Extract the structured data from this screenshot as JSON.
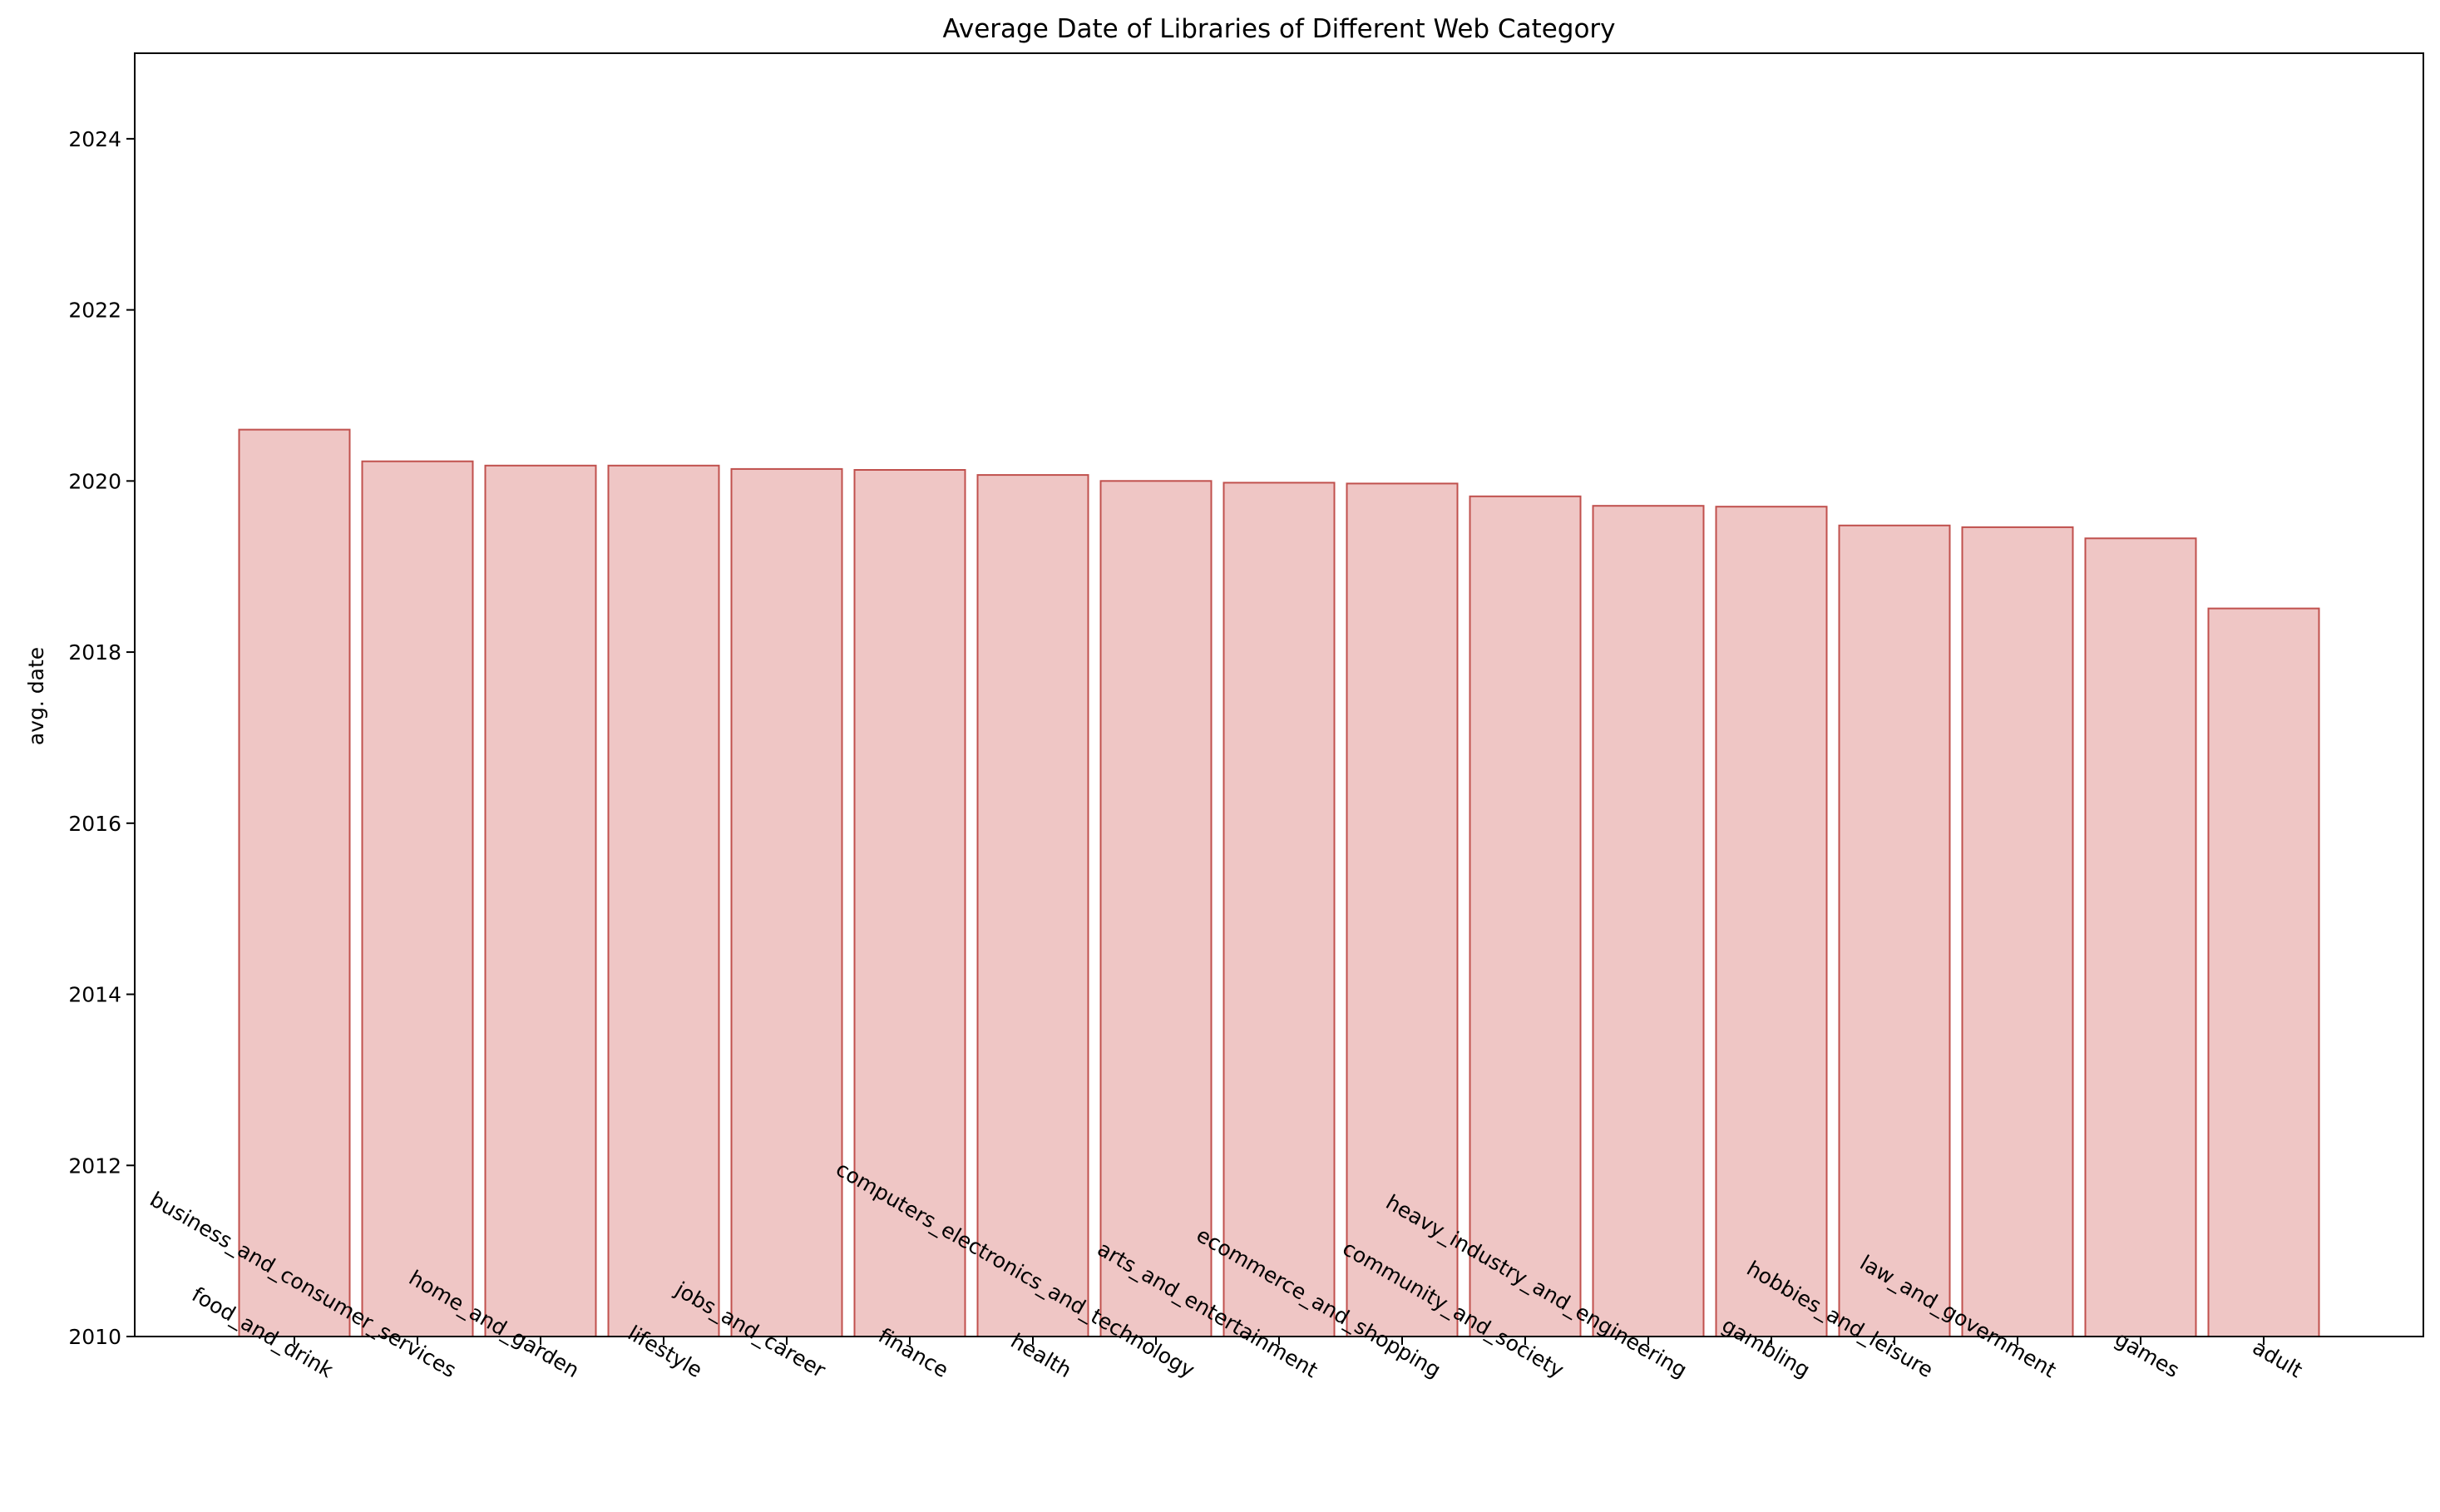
{
  "chart_data": {
    "type": "bar",
    "title": "Average Date of Libraries of Different Web Category",
    "xlabel": "",
    "ylabel": "avg. date",
    "ylim": [
      2010,
      2025
    ],
    "yticks": [
      2010,
      2012,
      2014,
      2016,
      2018,
      2020,
      2022,
      2024
    ],
    "grid": false,
    "legend": "none",
    "bar_fill": "#efc6c5",
    "bar_edge": "#c0504d",
    "categories": [
      "food_and_drink",
      "business_and_consumer_services",
      "home_and_garden",
      "lifestyle",
      "jobs_and_career",
      "finance",
      "health",
      "computers_electronics_and_technology",
      "arts_and_entertainment",
      "ecommerce_and_shopping",
      "community_and_society",
      "heavy_industry_and_engineering",
      "gambling",
      "hobbies_and_leisure",
      "law_and_government",
      "games",
      "adult"
    ],
    "values": [
      2020.6,
      2020.23,
      2020.18,
      2020.18,
      2020.14,
      2020.13,
      2020.07,
      2020.0,
      2019.98,
      2019.97,
      2019.82,
      2019.71,
      2019.7,
      2019.48,
      2019.46,
      2019.33,
      2018.51
    ]
  }
}
